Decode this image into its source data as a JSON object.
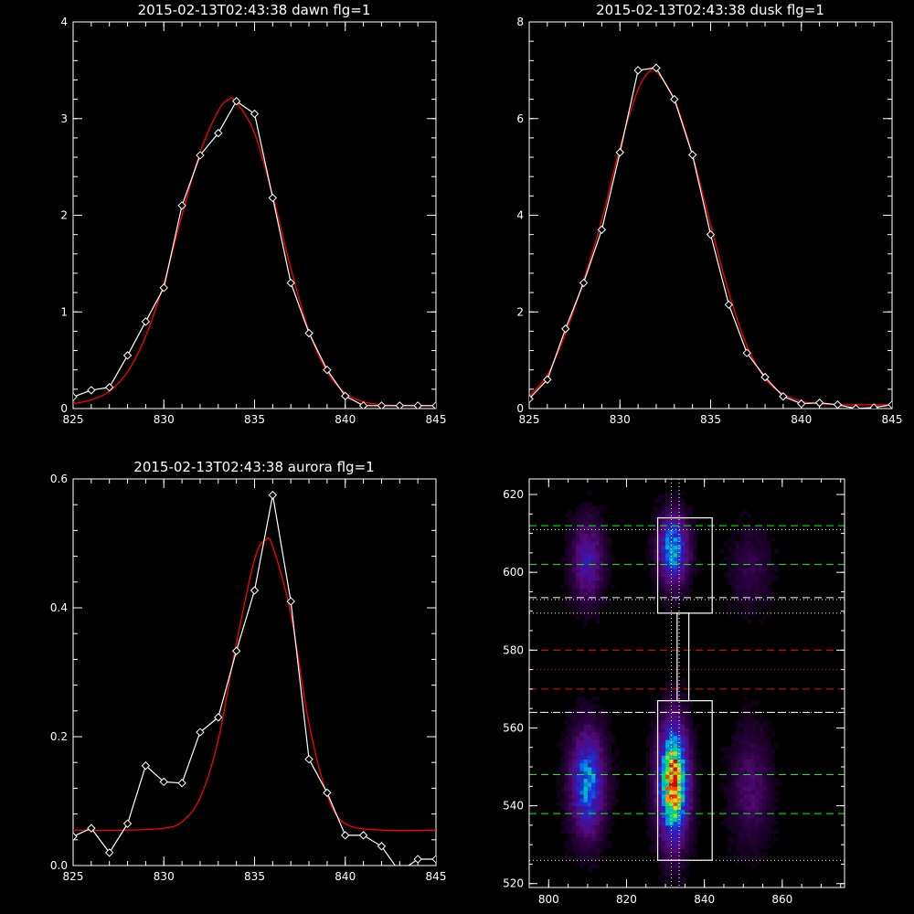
{
  "chart_data": [
    {
      "type": "line",
      "title": "2015-02-13T02:43:38 dawn flg=1",
      "xlim": [
        825,
        845
      ],
      "ylim": [
        0,
        4
      ],
      "xticks": [
        825,
        830,
        835,
        840,
        845
      ],
      "yticks": [
        0,
        1,
        2,
        3,
        4
      ],
      "xtick_labels": [
        "825",
        "830",
        "835",
        "840",
        "845"
      ],
      "ytick_labels": [
        "0",
        "1",
        "2",
        "3",
        "4"
      ],
      "series": [
        {
          "kind": "data",
          "color": "#ffffff",
          "marker": "diamond",
          "x": [
            825,
            826,
            827,
            828,
            829,
            830,
            831,
            832,
            833,
            834,
            835,
            836,
            837,
            838,
            839,
            840,
            841,
            842,
            843,
            844,
            845
          ],
          "y": [
            0.12,
            0.19,
            0.22,
            0.55,
            0.9,
            1.25,
            2.1,
            2.62,
            2.85,
            3.18,
            3.05,
            2.18,
            1.3,
            0.78,
            0.4,
            0.13,
            0.03,
            0.03,
            0.03,
            0.03,
            0.03
          ]
        },
        {
          "kind": "fit",
          "color": "#ff0000",
          "x": [
            825,
            826,
            827,
            828,
            829,
            830,
            831,
            832,
            833,
            833.6,
            834,
            835,
            836,
            837,
            838,
            839,
            840,
            841,
            842,
            843,
            844,
            845
          ],
          "y": [
            0.05,
            0.09,
            0.18,
            0.38,
            0.75,
            1.3,
            2.0,
            2.65,
            3.08,
            3.2,
            3.17,
            2.85,
            2.2,
            1.45,
            0.8,
            0.38,
            0.16,
            0.07,
            0.04,
            0.03,
            0.03,
            0.03
          ]
        }
      ]
    },
    {
      "type": "line",
      "title": "2015-02-13T02:43:38 dusk flg=1",
      "xlim": [
        825,
        845
      ],
      "ylim": [
        0,
        8
      ],
      "xticks": [
        825,
        830,
        835,
        840,
        845
      ],
      "yticks": [
        0,
        2,
        4,
        6,
        8
      ],
      "xtick_labels": [
        "825",
        "830",
        "835",
        "840",
        "845"
      ],
      "ytick_labels": [
        "0",
        "2",
        "4",
        "6",
        "8"
      ],
      "series": [
        {
          "kind": "data",
          "color": "#ffffff",
          "marker": "diamond",
          "x": [
            825,
            826,
            827,
            828,
            829,
            830,
            831,
            832,
            833,
            834,
            835,
            836,
            837,
            838,
            839,
            840,
            841,
            842,
            843,
            844,
            845
          ],
          "y": [
            0.2,
            0.6,
            1.65,
            2.6,
            3.7,
            5.3,
            7.0,
            7.05,
            6.4,
            5.25,
            3.6,
            2.15,
            1.15,
            0.65,
            0.25,
            0.1,
            0.12,
            0.08,
            0.0,
            0.02,
            0.08
          ]
        },
        {
          "kind": "fit",
          "color": "#ff0000",
          "x": [
            825,
            826,
            827,
            828,
            829,
            830,
            831,
            831.7,
            832,
            833,
            834,
            835,
            836,
            837,
            838,
            839,
            840,
            841,
            842,
            843,
            844,
            845
          ],
          "y": [
            0.25,
            0.7,
            1.55,
            2.65,
            3.9,
            5.4,
            6.6,
            7.0,
            6.98,
            6.4,
            5.25,
            3.8,
            2.4,
            1.3,
            0.62,
            0.3,
            0.15,
            0.1,
            0.08,
            0.08,
            0.08,
            0.08
          ]
        }
      ]
    },
    {
      "type": "line",
      "title": "2015-02-13T02:43:38 aurora flg=1",
      "xlim": [
        825,
        845
      ],
      "ylim": [
        0,
        0.6
      ],
      "xticks": [
        825,
        830,
        835,
        840,
        845
      ],
      "yticks": [
        0,
        0.2,
        0.4,
        0.6
      ],
      "xtick_labels": [
        "825",
        "830",
        "835",
        "840",
        "845"
      ],
      "ytick_labels": [
        "0.0",
        "0.2",
        "0.4",
        "0.6"
      ],
      "series": [
        {
          "kind": "data",
          "color": "#ffffff",
          "marker": "diamond",
          "x": [
            825,
            826,
            827,
            828,
            829,
            830,
            831,
            832,
            833,
            834,
            835,
            836,
            837,
            838,
            839,
            840,
            841,
            842,
            843,
            844,
            845
          ],
          "y": [
            0.045,
            0.058,
            0.02,
            0.065,
            0.155,
            0.13,
            0.128,
            0.207,
            0.23,
            0.333,
            0.427,
            0.575,
            0.41,
            0.165,
            0.113,
            0.047,
            0.047,
            0.03,
            -0.01,
            0.01,
            0.01
          ]
        },
        {
          "kind": "fit",
          "color": "#ff0000",
          "x": [
            825,
            828,
            830,
            831,
            832,
            833,
            834,
            835,
            835.6,
            836,
            837,
            838,
            839,
            840,
            842,
            845
          ],
          "y": [
            0.055,
            0.055,
            0.058,
            0.068,
            0.105,
            0.195,
            0.345,
            0.475,
            0.505,
            0.495,
            0.39,
            0.22,
            0.11,
            0.065,
            0.055,
            0.055
          ]
        }
      ]
    },
    {
      "type": "heatmap",
      "xlim": [
        795,
        876
      ],
      "ylim": [
        519,
        624
      ],
      "xticks": [
        800,
        820,
        840,
        860
      ],
      "yticks": [
        520,
        540,
        560,
        580,
        600,
        620
      ],
      "xtick_labels": [
        "800",
        "820",
        "840",
        "860"
      ],
      "ytick_labels": [
        "520",
        "540",
        "560",
        "580",
        "600",
        "620"
      ],
      "blobs": [
        {
          "x": 832,
          "y": 546,
          "sx": 2.6,
          "sy": 10,
          "amp": 1.0
        },
        {
          "x": 832,
          "y": 606,
          "sx": 2.6,
          "sy": 6,
          "amp": 0.62
        },
        {
          "x": 810,
          "y": 546,
          "sx": 3.0,
          "sy": 9,
          "amp": 0.58
        },
        {
          "x": 810,
          "y": 603,
          "sx": 2.8,
          "sy": 7,
          "amp": 0.34
        },
        {
          "x": 852,
          "y": 545,
          "sx": 3.5,
          "sy": 10,
          "amp": 0.2
        },
        {
          "x": 852,
          "y": 601,
          "sx": 3.5,
          "sy": 7,
          "amp": 0.13
        }
      ],
      "overlay": {
        "vertical_dotted_x": [
          831.5,
          833.5
        ],
        "h_dotted_white_y": [
          526,
          564,
          589.5,
          593,
          611
        ],
        "h_dotted_red_y": [
          575
        ],
        "h_dashed_green_y": [
          538,
          548,
          602,
          612
        ],
        "h_dashed_white_y": [
          564,
          593.5
        ],
        "h_dashed_red_y": [
          570,
          580
        ],
        "boxes": [
          {
            "x0": 828,
            "x1": 842,
            "y0": 526,
            "y1": 567
          },
          {
            "x0": 828,
            "x1": 842,
            "y0": 589.5,
            "y1": 614
          }
        ],
        "connector": {
          "x0": 833,
          "x1": 836,
          "y0": 567,
          "y1": 589.5
        }
      }
    }
  ]
}
